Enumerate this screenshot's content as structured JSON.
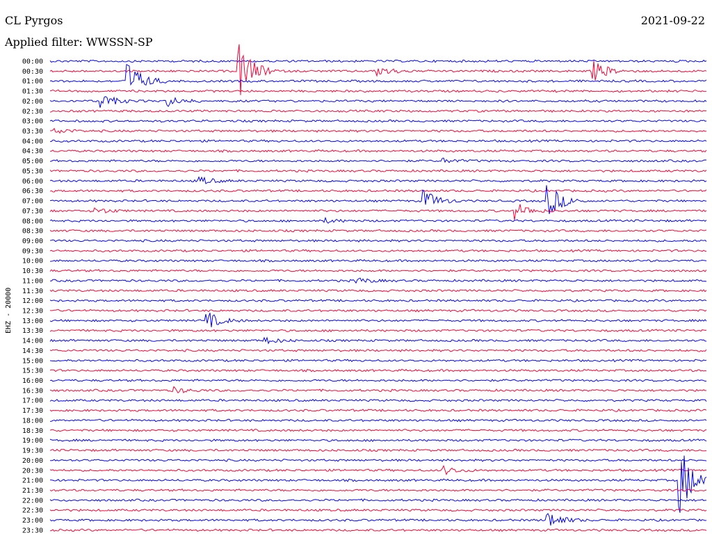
{
  "header": {
    "station": "CL Pyrgos",
    "date": "2021-09-22",
    "filter": "Applied filter: WWSSN-SP"
  },
  "channel_label": "EHZ - 20000",
  "chart_data": {
    "type": "line",
    "title": "CL Pyrgos",
    "ylabel": "EHZ - 20000",
    "grid": false,
    "series_colors": [
      "#0000ff",
      "#ff0033"
    ],
    "rows": [
      {
        "label": "00:00",
        "color": "#0000ff"
      },
      {
        "label": "00:30",
        "color": "#ff0033"
      },
      {
        "label": "01:00",
        "color": "#0000ff"
      },
      {
        "label": "01:30",
        "color": "#ff0033"
      },
      {
        "label": "02:00",
        "color": "#0000ff"
      },
      {
        "label": "02:30",
        "color": "#ff0033"
      },
      {
        "label": "03:00",
        "color": "#0000ff"
      },
      {
        "label": "03:30",
        "color": "#ff0033"
      },
      {
        "label": "04:00",
        "color": "#0000ff"
      },
      {
        "label": "04:30",
        "color": "#ff0033"
      },
      {
        "label": "05:00",
        "color": "#0000ff"
      },
      {
        "label": "05:30",
        "color": "#ff0033"
      },
      {
        "label": "06:00",
        "color": "#0000ff"
      },
      {
        "label": "06:30",
        "color": "#ff0033"
      },
      {
        "label": "07:00",
        "color": "#0000ff"
      },
      {
        "label": "07:30",
        "color": "#ff0033"
      },
      {
        "label": "08:00",
        "color": "#0000ff"
      },
      {
        "label": "08:30",
        "color": "#ff0033"
      },
      {
        "label": "09:00",
        "color": "#0000ff"
      },
      {
        "label": "09:30",
        "color": "#ff0033"
      },
      {
        "label": "10:00",
        "color": "#0000ff"
      },
      {
        "label": "10:30",
        "color": "#ff0033"
      },
      {
        "label": "11:00",
        "color": "#0000ff"
      },
      {
        "label": "11:30",
        "color": "#ff0033"
      },
      {
        "label": "12:00",
        "color": "#0000ff"
      },
      {
        "label": "12:30",
        "color": "#ff0033"
      },
      {
        "label": "13:00",
        "color": "#0000ff"
      },
      {
        "label": "13:30",
        "color": "#ff0033"
      },
      {
        "label": "14:00",
        "color": "#0000ff"
      },
      {
        "label": "14:30",
        "color": "#ff0033"
      },
      {
        "label": "15:00",
        "color": "#0000ff"
      },
      {
        "label": "15:30",
        "color": "#ff0033"
      },
      {
        "label": "16:00",
        "color": "#0000ff"
      },
      {
        "label": "16:30",
        "color": "#ff0033"
      },
      {
        "label": "17:00",
        "color": "#0000ff"
      },
      {
        "label": "17:30",
        "color": "#ff0033"
      },
      {
        "label": "18:00",
        "color": "#0000ff"
      },
      {
        "label": "18:30",
        "color": "#ff0033"
      },
      {
        "label": "19:00",
        "color": "#0000ff"
      },
      {
        "label": "19:30",
        "color": "#ff0033"
      },
      {
        "label": "20:00",
        "color": "#0000ff"
      },
      {
        "label": "20:30",
        "color": "#ff0033"
      },
      {
        "label": "21:00",
        "color": "#0000ff"
      },
      {
        "label": "21:30",
        "color": "#ff0033"
      },
      {
        "label": "22:00",
        "color": "#0000ff"
      },
      {
        "label": "22:30",
        "color": "#ff0033"
      },
      {
        "label": "23:00",
        "color": "#0000ff"
      },
      {
        "label": "23:30",
        "color": "#ff0033"
      }
    ],
    "events": [
      {
        "row": 1,
        "t": 0.29,
        "amp": 4.0
      },
      {
        "row": 1,
        "t": 0.5,
        "amp": 0.8
      },
      {
        "row": 1,
        "t": 0.83,
        "amp": 1.4
      },
      {
        "row": 2,
        "t": 0.12,
        "amp": 2.8
      },
      {
        "row": 4,
        "t": 0.08,
        "amp": 1.0
      },
      {
        "row": 4,
        "t": 0.18,
        "amp": 0.7
      },
      {
        "row": 7,
        "t": 0.01,
        "amp": 0.4
      },
      {
        "row": 10,
        "t": 0.6,
        "amp": 0.3
      },
      {
        "row": 12,
        "t": 0.23,
        "amp": 0.5
      },
      {
        "row": 14,
        "t": 0.57,
        "amp": 1.6
      },
      {
        "row": 14,
        "t": 0.76,
        "amp": 2.4
      },
      {
        "row": 15,
        "t": 0.71,
        "amp": 1.2
      },
      {
        "row": 15,
        "t": 0.07,
        "amp": 0.5
      },
      {
        "row": 16,
        "t": 0.42,
        "amp": 0.3
      },
      {
        "row": 22,
        "t": 0.47,
        "amp": 0.4
      },
      {
        "row": 26,
        "t": 0.24,
        "amp": 1.2
      },
      {
        "row": 28,
        "t": 0.33,
        "amp": 0.4
      },
      {
        "row": 33,
        "t": 0.19,
        "amp": 0.4
      },
      {
        "row": 41,
        "t": 0.6,
        "amp": 0.6
      },
      {
        "row": 42,
        "t": 0.96,
        "amp": 5.0
      },
      {
        "row": 46,
        "t": 0.76,
        "amp": 1.2
      }
    ]
  }
}
